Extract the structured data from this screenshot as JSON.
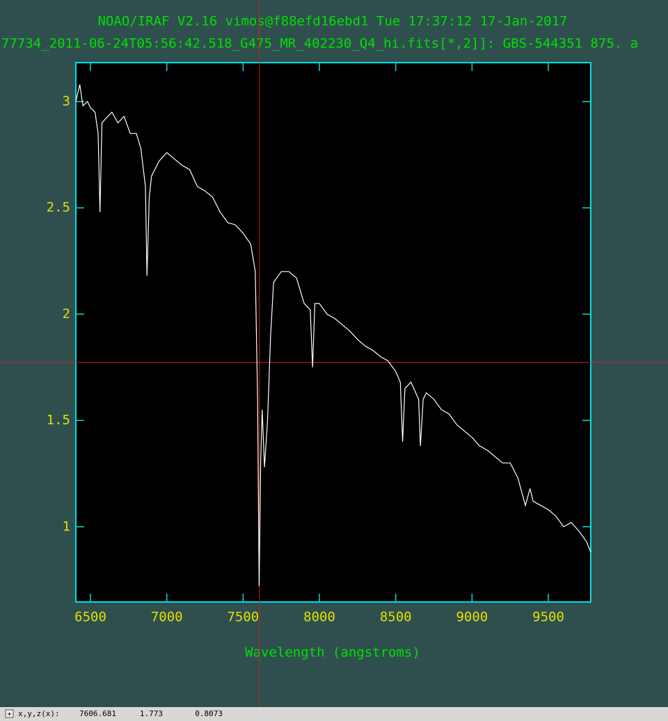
{
  "chart_data": {
    "type": "line",
    "title": "NOAO/IRAF V2.16 vimos@f88efd16ebd1 Tue 17:37:12 17-Jan-2017",
    "subtitle": "77734_2011-06-24T05:56:42.518_G475_MR_402230_Q4_hi.fits[*,2]]: GBS-544351 875. a",
    "xlabel": "Wavelength (angstroms)",
    "xlim": [
      6404,
      9778
    ],
    "ylim": [
      0.646,
      3.183
    ],
    "xticks": [
      6500,
      7000,
      7500,
      8000,
      8500,
      9000,
      9500
    ],
    "yticks": [
      1,
      1.5,
      2,
      2.5,
      3
    ],
    "series": [
      {
        "color": "#ffffff",
        "x": [
          6404,
          6430,
          6450,
          6480,
          6500,
          6530,
          6550,
          6562,
          6575,
          6600,
          6640,
          6680,
          6720,
          6760,
          6800,
          6830,
          6860,
          6870,
          6885,
          6900,
          6950,
          7000,
          7050,
          7100,
          7150,
          7200,
          7250,
          7300,
          7350,
          7400,
          7450,
          7500,
          7550,
          7580,
          7595,
          7605,
          7615,
          7625,
          7640,
          7660,
          7680,
          7700,
          7750,
          7800,
          7850,
          7900,
          7940,
          7955,
          7970,
          8000,
          8050,
          8100,
          8150,
          8200,
          8250,
          8300,
          8350,
          8400,
          8450,
          8500,
          8530,
          8545,
          8560,
          8600,
          8650,
          8662,
          8680,
          8700,
          8750,
          8800,
          8850,
          8900,
          8950,
          9000,
          9050,
          9100,
          9150,
          9200,
          9250,
          9300,
          9350,
          9380,
          9400,
          9450,
          9500,
          9550,
          9600,
          9650,
          9700,
          9750,
          9778
        ],
        "values": [
          3.0,
          3.08,
          2.98,
          3.0,
          2.97,
          2.95,
          2.85,
          2.48,
          2.9,
          2.92,
          2.95,
          2.9,
          2.93,
          2.85,
          2.85,
          2.78,
          2.6,
          2.18,
          2.55,
          2.65,
          2.72,
          2.76,
          2.73,
          2.7,
          2.68,
          2.6,
          2.58,
          2.55,
          2.48,
          2.43,
          2.42,
          2.38,
          2.33,
          2.2,
          1.6,
          0.72,
          1.3,
          1.55,
          1.28,
          1.5,
          1.9,
          2.15,
          2.2,
          2.2,
          2.17,
          2.05,
          2.02,
          1.75,
          2.05,
          2.05,
          2.0,
          1.98,
          1.95,
          1.92,
          1.88,
          1.85,
          1.83,
          1.8,
          1.78,
          1.73,
          1.68,
          1.4,
          1.65,
          1.68,
          1.6,
          1.38,
          1.6,
          1.63,
          1.6,
          1.55,
          1.53,
          1.48,
          1.45,
          1.42,
          1.38,
          1.36,
          1.33,
          1.3,
          1.3,
          1.23,
          1.1,
          1.18,
          1.12,
          1.1,
          1.08,
          1.05,
          1.0,
          1.02,
          0.98,
          0.93,
          0.88
        ]
      }
    ]
  },
  "status": {
    "label": "x,y,z(x):",
    "x": 7606.681,
    "y": 1.773,
    "z": 0.8073
  }
}
